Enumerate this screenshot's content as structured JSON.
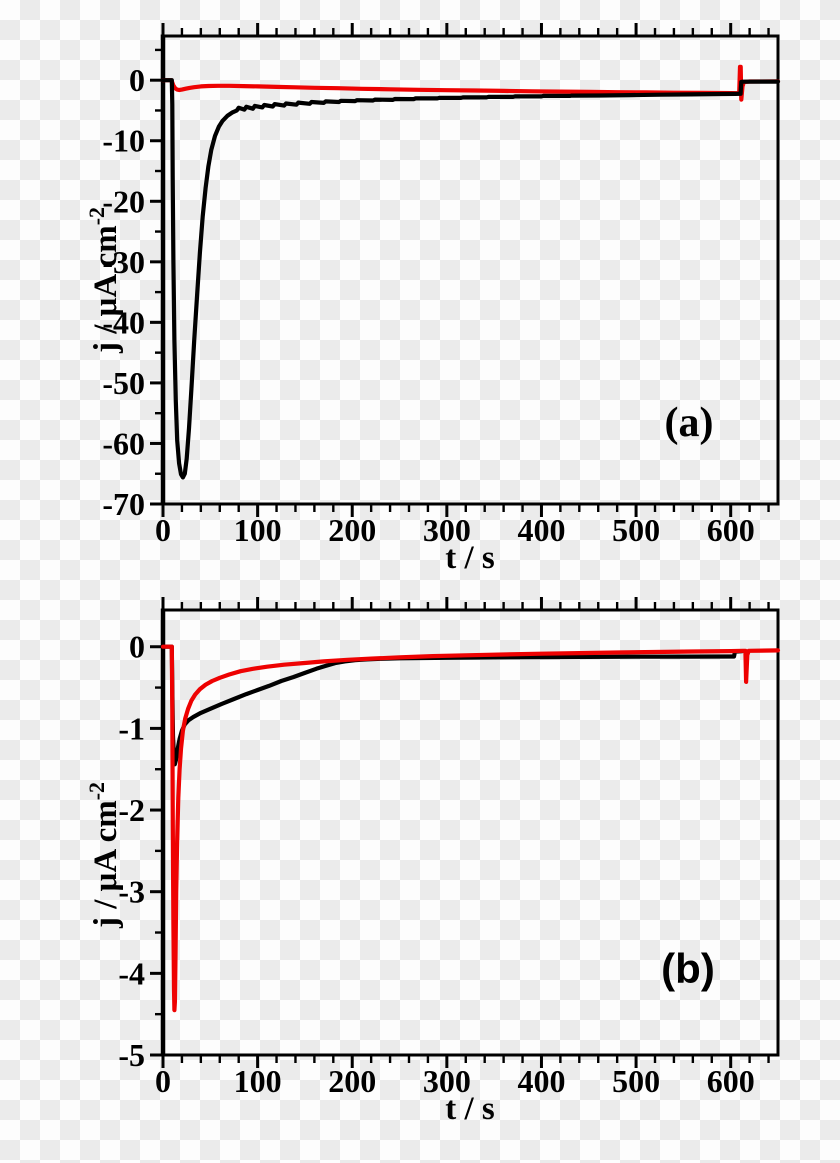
{
  "figure": {
    "background": {
      "checker_light": "#fdfdfd",
      "checker_dark": "#ebebeb"
    },
    "frame_color": "#000000",
    "text_color": "#000000"
  },
  "chart_data": [
    {
      "id": "panel-a",
      "type": "line",
      "annotation": "(a)",
      "xlabel": "t / s",
      "ylabel_main": "j / μA cm",
      "ylabel_sup": "-2",
      "xlim": [
        0,
        650
      ],
      "ylim": [
        -70,
        7.3
      ],
      "xticks": [
        0,
        100,
        200,
        300,
        400,
        500,
        600
      ],
      "x_minor_step": 20,
      "yticks": [
        0,
        -10,
        -20,
        -30,
        -40,
        -50,
        -60,
        -70
      ],
      "y_minor_step": 5,
      "grid": false,
      "legend": "none",
      "series": [
        {
          "name": "red-curve",
          "color": "#ee0202",
          "points": [
            [
              0,
              0
            ],
            [
              9,
              0
            ],
            [
              9.6,
              -0.3
            ],
            [
              11,
              -0.9
            ],
            [
              13,
              -1.35
            ],
            [
              15,
              -1.55
            ],
            [
              17,
              -1.62
            ],
            [
              20,
              -1.55
            ],
            [
              24,
              -1.4
            ],
            [
              28,
              -1.27
            ],
            [
              33,
              -1.15
            ],
            [
              40,
              -1.03
            ],
            [
              48,
              -0.96
            ],
            [
              58,
              -0.92
            ],
            [
              70,
              -0.93
            ],
            [
              85,
              -0.97
            ],
            [
              100,
              -1.02
            ],
            [
              120,
              -1.1
            ],
            [
              140,
              -1.18
            ],
            [
              160,
              -1.25
            ],
            [
              185,
              -1.33
            ],
            [
              210,
              -1.42
            ],
            [
              240,
              -1.5
            ],
            [
              270,
              -1.58
            ],
            [
              300,
              -1.65
            ],
            [
              330,
              -1.71
            ],
            [
              360,
              -1.77
            ],
            [
              390,
              -1.83
            ],
            [
              420,
              -1.88
            ],
            [
              450,
              -1.93
            ],
            [
              480,
              -1.98
            ],
            [
              510,
              -2.02
            ],
            [
              540,
              -2.06
            ],
            [
              570,
              -2.1
            ],
            [
              600,
              -2.13
            ],
            [
              609,
              -2.14
            ],
            [
              609.8,
              2.2
            ],
            [
              610.6,
              2.2
            ],
            [
              611.2,
              -3.2
            ],
            [
              612.5,
              -1.0
            ],
            [
              614,
              -0.3
            ],
            [
              620,
              -0.22
            ],
            [
              650,
              -0.2
            ]
          ]
        },
        {
          "name": "black-curve",
          "color": "#000000",
          "points": [
            [
              0,
              0
            ],
            [
              9.3,
              0
            ],
            [
              9.8,
              -4
            ],
            [
              10.3,
              -16
            ],
            [
              11,
              -30
            ],
            [
              12,
              -43
            ],
            [
              13.5,
              -53
            ],
            [
              15,
              -59.5
            ],
            [
              17,
              -63.3
            ],
            [
              19,
              -65.1
            ],
            [
              21,
              -65.6
            ],
            [
              23,
              -65
            ],
            [
              25,
              -62.5
            ],
            [
              27.5,
              -57.5
            ],
            [
              30,
              -51
            ],
            [
              33,
              -43
            ],
            [
              36,
              -35.5
            ],
            [
              39,
              -28.5
            ],
            [
              42,
              -22.5
            ],
            [
              45,
              -17.8
            ],
            [
              48,
              -14.2
            ],
            [
              51,
              -11.5
            ],
            [
              55,
              -9.2
            ],
            [
              59,
              -7.7
            ],
            [
              63,
              -6.7
            ],
            [
              68,
              -5.9
            ],
            [
              73,
              -5.35
            ],
            [
              78,
              -5.0
            ],
            [
              80,
              -4.55
            ],
            [
              86,
              -4.85
            ],
            [
              88,
              -4.4
            ],
            [
              95,
              -4.7
            ],
            [
              97,
              -4.25
            ],
            [
              105,
              -4.5
            ],
            [
              107,
              -4.1
            ],
            [
              116,
              -4.35
            ],
            [
              118,
              -3.95
            ],
            [
              128,
              -4.2
            ],
            [
              130,
              -3.85
            ],
            [
              141,
              -4.05
            ],
            [
              143,
              -3.7
            ],
            [
              155,
              -3.9
            ],
            [
              157,
              -3.6
            ],
            [
              170,
              -3.75
            ],
            [
              172,
              -3.5
            ],
            [
              186,
              -3.6
            ],
            [
              188,
              -3.4
            ],
            [
              203,
              -3.45
            ],
            [
              205,
              -3.3
            ],
            [
              222,
              -3.35
            ],
            [
              224,
              -3.2
            ],
            [
              243,
              -3.25
            ],
            [
              245,
              -3.1
            ],
            [
              265,
              -3.12
            ],
            [
              267,
              -3.0
            ],
            [
              290,
              -3.0
            ],
            [
              292,
              -2.92
            ],
            [
              315,
              -2.92
            ],
            [
              317,
              -2.84
            ],
            [
              342,
              -2.84
            ],
            [
              344,
              -2.76
            ],
            [
              370,
              -2.76
            ],
            [
              372,
              -2.68
            ],
            [
              400,
              -2.68
            ],
            [
              402,
              -2.6
            ],
            [
              430,
              -2.6
            ],
            [
              432,
              -2.54
            ],
            [
              462,
              -2.52
            ],
            [
              494,
              -2.46
            ],
            [
              526,
              -2.4
            ],
            [
              558,
              -2.34
            ],
            [
              590,
              -2.28
            ],
            [
              605,
              -2.26
            ],
            [
              610.5,
              -2.25
            ],
            [
              611.2,
              -0.28
            ],
            [
              613,
              -0.25
            ],
            [
              650,
              -0.23
            ]
          ]
        }
      ]
    },
    {
      "id": "panel-b",
      "type": "line",
      "annotation": "(b)",
      "xlabel": "t / s",
      "ylabel_main": "j / μA cm",
      "ylabel_sup": "-2",
      "xlim": [
        0,
        650
      ],
      "ylim": [
        -5,
        0.45
      ],
      "xticks": [
        0,
        100,
        200,
        300,
        400,
        500,
        600
      ],
      "x_minor_step": 20,
      "yticks": [
        0,
        -1,
        -2,
        -3,
        -4,
        -5
      ],
      "y_minor_step": 0.5,
      "grid": false,
      "legend": "none",
      "series": [
        {
          "name": "black-curve",
          "color": "#000000",
          "points": [
            [
              0,
              0
            ],
            [
              9.3,
              0
            ],
            [
              9.9,
              -0.6
            ],
            [
              10.6,
              -1.1
            ],
            [
              11.5,
              -1.35
            ],
            [
              12.5,
              -1.44
            ],
            [
              13.8,
              -1.38
            ],
            [
              15.5,
              -1.25
            ],
            [
              17.5,
              -1.13
            ],
            [
              20,
              -1.03
            ],
            [
              23,
              -0.95
            ],
            [
              27,
              -0.9
            ],
            [
              32,
              -0.86
            ],
            [
              40,
              -0.81
            ],
            [
              50,
              -0.76
            ],
            [
              62,
              -0.7
            ],
            [
              75,
              -0.64
            ],
            [
              88,
              -0.58
            ],
            [
              100,
              -0.53
            ],
            [
              112,
              -0.48
            ],
            [
              125,
              -0.42
            ],
            [
              138,
              -0.37
            ],
            [
              150,
              -0.32
            ],
            [
              162,
              -0.27
            ],
            [
              172,
              -0.235
            ],
            [
              182,
              -0.2
            ],
            [
              192,
              -0.18
            ],
            [
              203,
              -0.165
            ],
            [
              215,
              -0.155
            ],
            [
              230,
              -0.148
            ],
            [
              250,
              -0.142
            ],
            [
              275,
              -0.138
            ],
            [
              300,
              -0.135
            ],
            [
              350,
              -0.13
            ],
            [
              400,
              -0.127
            ],
            [
              450,
              -0.124
            ],
            [
              500,
              -0.122
            ],
            [
              550,
              -0.121
            ],
            [
              600,
              -0.12
            ],
            [
              603.5,
              -0.12
            ],
            [
              604.5,
              -0.06
            ],
            [
              612,
              -0.055
            ]
          ]
        },
        {
          "name": "red-curve",
          "color": "#ee0202",
          "points": [
            [
              0,
              0
            ],
            [
              9.3,
              0
            ],
            [
              9.8,
              -0.8
            ],
            [
              10.4,
              -2.2
            ],
            [
              11,
              -3.4
            ],
            [
              11.6,
              -4.2
            ],
            [
              12,
              -4.45
            ],
            [
              12.6,
              -4.35
            ],
            [
              13.2,
              -3.8
            ],
            [
              14,
              -3.0
            ],
            [
              15,
              -2.35
            ],
            [
              16.2,
              -1.85
            ],
            [
              17.5,
              -1.5
            ],
            [
              19,
              -1.25
            ],
            [
              21,
              -1.03
            ],
            [
              23.5,
              -0.88
            ],
            [
              26.5,
              -0.76
            ],
            [
              30,
              -0.66
            ],
            [
              34,
              -0.585
            ],
            [
              39,
              -0.52
            ],
            [
              45,
              -0.465
            ],
            [
              52,
              -0.42
            ],
            [
              60,
              -0.38
            ],
            [
              70,
              -0.34
            ],
            [
              82,
              -0.3
            ],
            [
              95,
              -0.27
            ],
            [
              110,
              -0.245
            ],
            [
              128,
              -0.22
            ],
            [
              148,
              -0.2
            ],
            [
              170,
              -0.18
            ],
            [
              195,
              -0.16
            ],
            [
              220,
              -0.145
            ],
            [
              250,
              -0.13
            ],
            [
              285,
              -0.115
            ],
            [
              320,
              -0.105
            ],
            [
              360,
              -0.095
            ],
            [
              400,
              -0.085
            ],
            [
              440,
              -0.078
            ],
            [
              480,
              -0.07
            ],
            [
              520,
              -0.064
            ],
            [
              560,
              -0.058
            ],
            [
              600,
              -0.053
            ],
            [
              613,
              -0.05
            ],
            [
              615.5,
              -0.05
            ],
            [
              616.3,
              -0.43
            ],
            [
              617.5,
              -0.1
            ],
            [
              619,
              -0.05
            ],
            [
              650,
              -0.045
            ]
          ]
        }
      ]
    }
  ]
}
